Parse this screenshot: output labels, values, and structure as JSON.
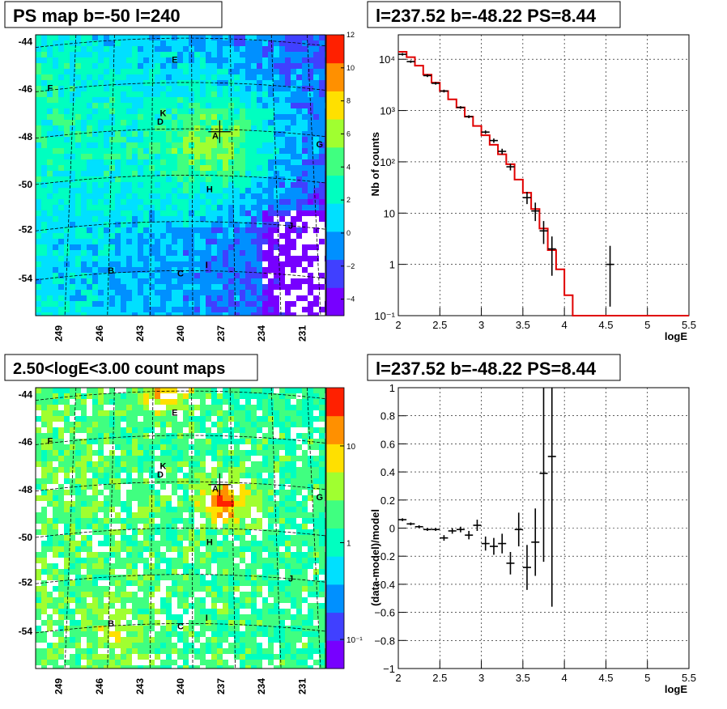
{
  "panels": {
    "top_left_title": "PS map b=-50 l=240",
    "top_right_title": "l=237.52 b=-48.22 PS=8.44",
    "bottom_left_title": "2.50<logE<3.00 count maps",
    "bottom_right_title": "l=237.52 b=-48.22 PS=8.44"
  },
  "chart_data": [
    {
      "type": "heatmap",
      "title": "PS map b=-50 l=240",
      "x_ticks": [
        "249",
        "246",
        "243",
        "240",
        "237",
        "234",
        "231"
      ],
      "y_ticks": [
        "-44",
        "-46",
        "-48",
        "-50",
        "-52",
        "-54"
      ],
      "colorbar_ticks": [
        "12",
        "10",
        "8",
        "6",
        "4",
        "2",
        "0",
        "−2",
        "−4"
      ],
      "colorbar_range": [
        -5,
        12
      ],
      "colors": [
        "#7700ff",
        "#4040ff",
        "#0090ff",
        "#00e0ff",
        "#00ffc0",
        "#40ff80",
        "#a0ff30",
        "#ffe000",
        "#ff9000",
        "#ff2000"
      ],
      "sources": [
        "A",
        "B",
        "C",
        "D",
        "E",
        "F",
        "G",
        "H",
        "I",
        "J",
        "K"
      ],
      "marker": "A"
    },
    {
      "type": "line",
      "title": "l=237.52 b=-48.22 PS=8.44",
      "xlabel": "logE",
      "ylabel": "Nb of counts",
      "log_y": true,
      "xlim": [
        2,
        5.5
      ],
      "ylim": [
        0.1,
        30000
      ],
      "x_ticks": [
        "2",
        "2.5",
        "3",
        "3.5",
        "4",
        "4.5",
        "5",
        "5.5"
      ],
      "y_ticks": [
        "10⁴",
        "10³",
        "10²",
        "10",
        "1",
        "10⁻¹"
      ],
      "model_steps": {
        "edges": [
          2.0,
          2.1,
          2.2,
          2.3,
          2.4,
          2.5,
          2.6,
          2.7,
          2.8,
          2.9,
          3.0,
          3.1,
          3.2,
          3.3,
          3.4,
          3.5,
          3.6,
          3.7,
          3.8,
          3.9,
          4.0,
          4.1,
          4.2,
          5.5
        ],
        "values": [
          14000,
          11000,
          7500,
          5000,
          3500,
          2400,
          1650,
          1150,
          760,
          500,
          330,
          215,
          140,
          90,
          45,
          25,
          12,
          5,
          1.9,
          0.8,
          0.25,
          0.1,
          0.1
        ]
      },
      "data_points": [
        {
          "x": 2.05,
          "y": 12500,
          "lo": 11800,
          "hi": 13200
        },
        {
          "x": 2.15,
          "y": 9000,
          "lo": 8500,
          "hi": 9500
        },
        {
          "x": 2.35,
          "y": 4800,
          "lo": 4500,
          "hi": 5100
        },
        {
          "x": 2.45,
          "y": 3400,
          "lo": 3200,
          "hi": 3600
        },
        {
          "x": 2.55,
          "y": 2400,
          "lo": 2250,
          "hi": 2550
        },
        {
          "x": 2.75,
          "y": 1150,
          "lo": 1080,
          "hi": 1220
        },
        {
          "x": 2.85,
          "y": 760,
          "lo": 710,
          "hi": 810
        },
        {
          "x": 3.05,
          "y": 380,
          "lo": 350,
          "hi": 410
        },
        {
          "x": 3.15,
          "y": 260,
          "lo": 235,
          "hi": 285
        },
        {
          "x": 3.25,
          "y": 160,
          "lo": 140,
          "hi": 180
        },
        {
          "x": 3.35,
          "y": 80,
          "lo": 68,
          "hi": 92
        },
        {
          "x": 3.55,
          "y": 20,
          "lo": 15,
          "hi": 26
        },
        {
          "x": 3.65,
          "y": 11,
          "lo": 7,
          "hi": 16
        },
        {
          "x": 3.75,
          "y": 4.5,
          "lo": 2.5,
          "hi": 7
        },
        {
          "x": 3.85,
          "y": 2,
          "lo": 0.6,
          "hi": 3.5
        },
        {
          "x": 4.55,
          "y": 1,
          "lo": 0.15,
          "hi": 2.3
        }
      ]
    },
    {
      "type": "heatmap",
      "title": "2.50<logE<3.00 count maps",
      "x_ticks": [
        "249",
        "246",
        "243",
        "240",
        "237",
        "234",
        "231"
      ],
      "y_ticks": [
        "-44",
        "-46",
        "-48",
        "-50",
        "-52",
        "-54"
      ],
      "colorbar_ticks": [
        "10",
        "1",
        "10⁻¹"
      ],
      "log_color": true,
      "sources": [
        "A",
        "B",
        "C",
        "D",
        "E",
        "F",
        "G",
        "H",
        "I",
        "J",
        "K"
      ],
      "marker": "A"
    },
    {
      "type": "scatter",
      "title": "l=237.52 b=-48.22 PS=8.44",
      "xlabel": "logE",
      "ylabel": "(data-model)/model",
      "xlim": [
        2,
        5.5
      ],
      "ylim": [
        -1,
        1
      ],
      "x_ticks": [
        "2",
        "2.5",
        "3",
        "3.5",
        "4",
        "4.5",
        "5",
        "5.5"
      ],
      "y_ticks": [
        "1",
        "0.8",
        "0.6",
        "0.4",
        "0.2",
        "0",
        "−0.2",
        "−0.4",
        "−0.6",
        "−0.8",
        "−1"
      ],
      "data_points": [
        {
          "x": 2.05,
          "y": 0.06,
          "lo": 0.05,
          "hi": 0.07
        },
        {
          "x": 2.15,
          "y": 0.03,
          "lo": 0.02,
          "hi": 0.04
        },
        {
          "x": 2.25,
          "y": 0.01,
          "lo": 0.0,
          "hi": 0.02
        },
        {
          "x": 2.35,
          "y": -0.01,
          "lo": -0.02,
          "hi": 0.0
        },
        {
          "x": 2.45,
          "y": -0.01,
          "lo": -0.02,
          "hi": 0.0
        },
        {
          "x": 2.55,
          "y": -0.07,
          "lo": -0.09,
          "hi": -0.05
        },
        {
          "x": 2.65,
          "y": -0.02,
          "lo": -0.04,
          "hi": 0.0
        },
        {
          "x": 2.75,
          "y": -0.01,
          "lo": -0.03,
          "hi": 0.01
        },
        {
          "x": 2.85,
          "y": -0.05,
          "lo": -0.08,
          "hi": -0.02
        },
        {
          "x": 2.95,
          "y": 0.02,
          "lo": -0.02,
          "hi": 0.06
        },
        {
          "x": 3.05,
          "y": -0.11,
          "lo": -0.16,
          "hi": -0.06
        },
        {
          "x": 3.15,
          "y": -0.13,
          "lo": -0.19,
          "hi": -0.07
        },
        {
          "x": 3.25,
          "y": -0.11,
          "lo": -0.18,
          "hi": -0.04
        },
        {
          "x": 3.35,
          "y": -0.25,
          "lo": -0.33,
          "hi": -0.17
        },
        {
          "x": 3.45,
          "y": -0.01,
          "lo": -0.13,
          "hi": 0.11
        },
        {
          "x": 3.55,
          "y": -0.28,
          "lo": -0.44,
          "hi": -0.12
        },
        {
          "x": 3.65,
          "y": -0.1,
          "lo": -0.34,
          "hi": 0.14
        },
        {
          "x": 3.75,
          "y": 0.39,
          "lo": -0.24,
          "hi": 1.0
        },
        {
          "x": 3.85,
          "y": 0.51,
          "lo": -0.56,
          "hi": 1.0
        }
      ]
    }
  ]
}
